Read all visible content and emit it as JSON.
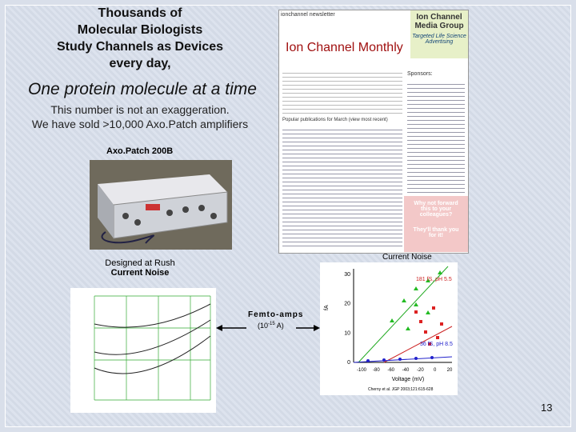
{
  "headline": {
    "lines": [
      "Thousands of",
      "Molecular Biologists",
      "Study Channels as Devices",
      "every day,"
    ],
    "emphasis": "One protein molecule at a time"
  },
  "note": {
    "lines": [
      "This number is not an exaggeration.",
      "We have sold >10,000 Axo.Patch amplifiers"
    ]
  },
  "photo_caption": "Axo.Patch 200B",
  "design_caption": {
    "lines": [
      "Designed at Rush",
      "Current Noise"
    ]
  },
  "newsletter": {
    "tab": "ionchannel newsletter",
    "title": "Ion Channel Monthly",
    "brand": [
      "Ion Channel",
      "Media Group"
    ],
    "tagline": [
      "Targeted Life Science",
      "Advertising"
    ],
    "sponsors": "Sponsors:",
    "popular": "Popular publications for March (view most recent)",
    "promo": [
      "Why not forward",
      "this to your colleagues?",
      "They'll thank you",
      "for it!"
    ]
  },
  "scatter": {
    "title": "Current Noise",
    "y_label": "fA",
    "x_label": "Voltage (mV)",
    "yticks": [
      "0",
      "10",
      "20",
      "30"
    ],
    "xticks": [
      "-100",
      "-80",
      "-60",
      "-40",
      "-20",
      "0",
      "20"
    ],
    "labels": [
      "181 fS, pH 5.5",
      "36 fS, pH 8.5"
    ],
    "citation": "Cherny et al. JGP 2003;121:615-628"
  },
  "callout": {
    "label": "Femto-amps",
    "unit_start": "(10",
    "exponent": "-15",
    "unit_end": " A)"
  },
  "page_number": "13"
}
